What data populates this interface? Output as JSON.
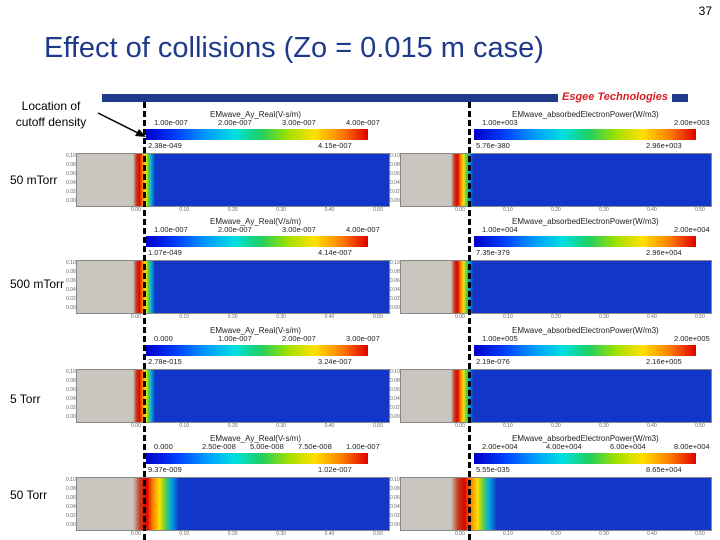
{
  "slide_number": "37",
  "title": "Effect of collisions (Zo = 0.015 m case)",
  "logo_text": "Esgee Technologies",
  "callout": {
    "line1": "Location of",
    "line2": "cutoff density"
  },
  "rows": [
    {
      "label": "50 mTorr",
      "left": {
        "title": "EMwave_Ay_Real(V-s/m)",
        "ticks": [
          "1.00e-007",
          "2.00e-007",
          "3.00e-007",
          "4.00e-007"
        ],
        "min": "2.38e-049",
        "max": "4.15e-007"
      },
      "right": {
        "title": "EMwave_absorbedElectronPower(W/m3)",
        "ticks": [
          "1.00e+003",
          "2.00e+003"
        ],
        "min": "5.76e-380",
        "max": "2.96e+003"
      }
    },
    {
      "label": "500 mTorr",
      "left": {
        "title": "EMwave_Ay_Real(V/s/m)",
        "ticks": [
          "1.00e-007",
          "2.00e-007",
          "3.00e-007",
          "4.00e-007"
        ],
        "min": "1.07e-049",
        "max": "4.14e-007"
      },
      "right": {
        "title": "EMwave_absorbedElectronPower(W/m3)",
        "ticks": [
          "1.00e+004",
          "2.00e+004"
        ],
        "min": "7.35e-379",
        "max": "2.96e+004"
      }
    },
    {
      "label": "5 Torr",
      "left": {
        "title": "EMwave_Ay_Real(V-s/m)",
        "ticks": [
          "0.000",
          "1.00e-007",
          "2.00e-007",
          "3.00e-007"
        ],
        "min": "2.78e-015",
        "max": "3.24e-007"
      },
      "right": {
        "title": "EMwave_absorbedElectronPower(W/m3)",
        "ticks": [
          "1.00e+005",
          "2.00e+005"
        ],
        "min": "2.19e-076",
        "max": "2.16e+005"
      }
    },
    {
      "label": "50 Torr",
      "left": {
        "title": "EMwave_Ay_Real(V-s/m)",
        "ticks": [
          "0.000",
          "2.50e-008",
          "5.00e-008",
          "7.50e-008",
          "1.00e-007"
        ],
        "min": "9.37e-009",
        "max": "1.02e-007"
      },
      "right": {
        "title": "EMwave_absorbedElectronPower(W/m3)",
        "ticks": [
          "2.00e+004",
          "4.00e+004",
          "6.00e+004",
          "8.00e+004"
        ],
        "min": "5.55e-035",
        "max": "8.65e+004"
      }
    }
  ],
  "axis": {
    "x_ticks": [
      "0.00",
      "0.10",
      "0.20",
      "0.30",
      "0.40",
      "0.50"
    ],
    "y_ticks": [
      "0.10",
      "0.08",
      "0.06",
      "0.04",
      "0.02",
      "0.00"
    ]
  },
  "colors": {
    "title": "#1f3a8a",
    "logo": "#d81f26",
    "field": "#1136c8",
    "metal": "#c9c6c0"
  }
}
